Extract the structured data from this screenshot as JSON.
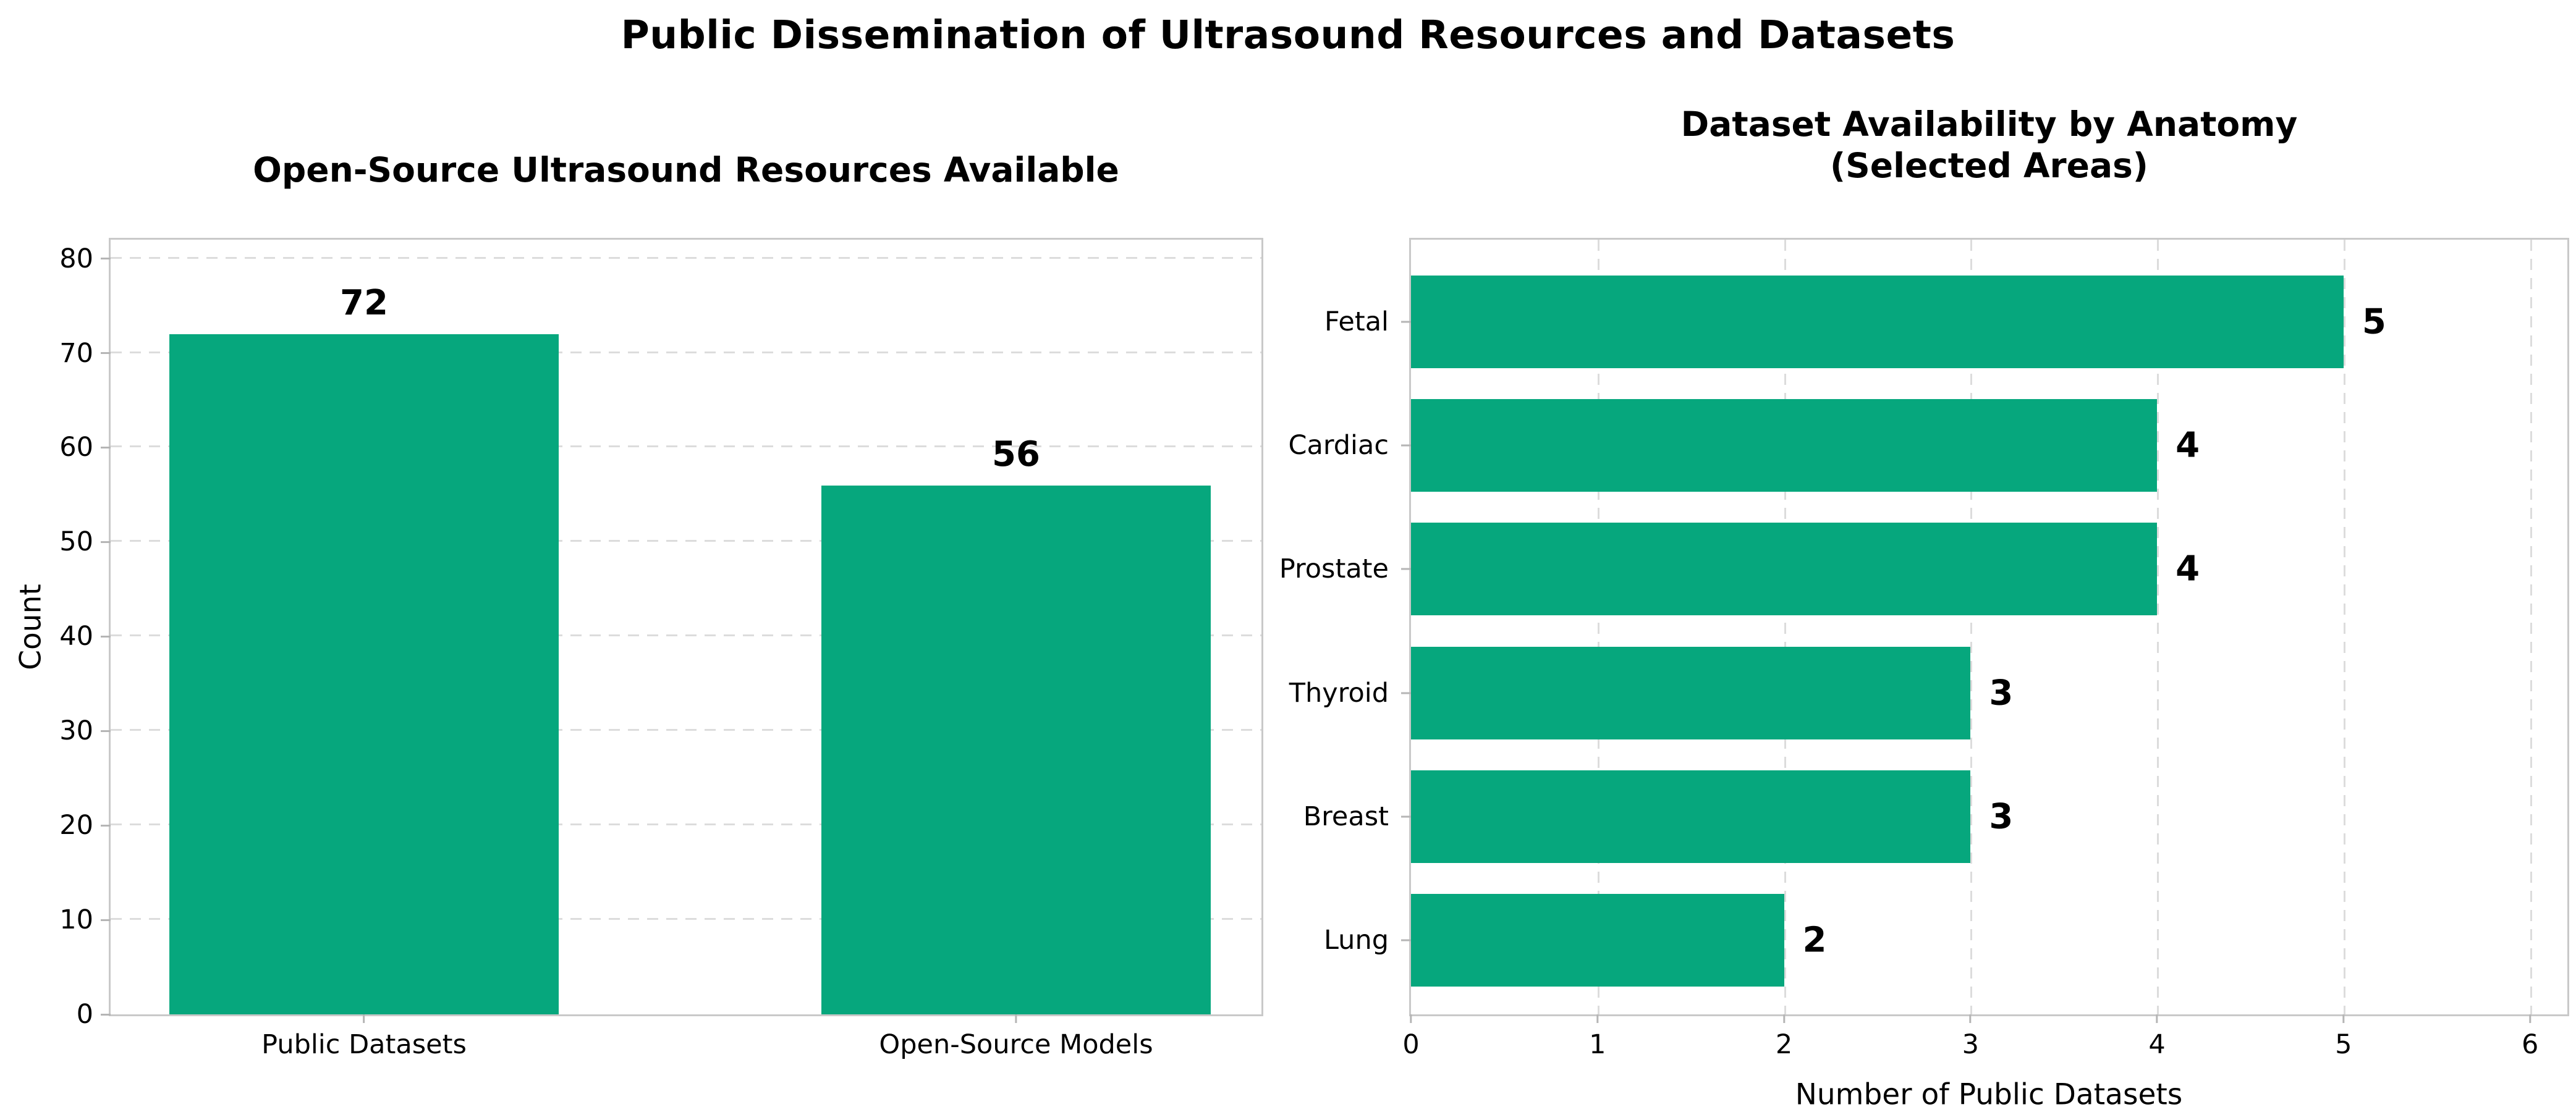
{
  "suptitle": "Public Dissemination of Ultrasound Resources and Datasets",
  "colors": {
    "bar_green": "#06a77d",
    "grid": "#dcdcdc",
    "spine": "#c9c9c9",
    "tick": "#b5b5b5",
    "text": "#000000",
    "background": "#ffffff"
  },
  "chart_data": [
    {
      "type": "bar",
      "title": "Open-Source Ultrasound Resources Available",
      "categories": [
        "Public Datasets",
        "Open-Source Models"
      ],
      "values": [
        72,
        56
      ],
      "bar_labels": [
        "72",
        "56"
      ],
      "xlabel": "",
      "ylabel": "Count",
      "yticks": [
        "0",
        "10",
        "20",
        "30",
        "40",
        "50",
        "60",
        "70",
        "80"
      ],
      "ylim": [
        0,
        82
      ],
      "grid": "horizontal dashed",
      "legend": "none"
    },
    {
      "type": "bar-horizontal",
      "title": "Dataset Availability by Anatomy (Selected Areas)",
      "title_lines": [
        "Dataset Availability by Anatomy",
        "(Selected Areas)"
      ],
      "categories": [
        "Fetal",
        "Cardiac",
        "Prostate",
        "Thyroid",
        "Breast",
        "Lung"
      ],
      "values": [
        5,
        4,
        4,
        3,
        3,
        2
      ],
      "bar_labels": [
        "5",
        "4",
        "4",
        "3",
        "3",
        "2"
      ],
      "xlabel": "Number of Public Datasets",
      "xticks": [
        "0",
        "1",
        "2",
        "3",
        "4",
        "5",
        "6"
      ],
      "xlim": [
        0,
        6.2
      ],
      "grid": "vertical dashed",
      "legend": "none"
    }
  ]
}
